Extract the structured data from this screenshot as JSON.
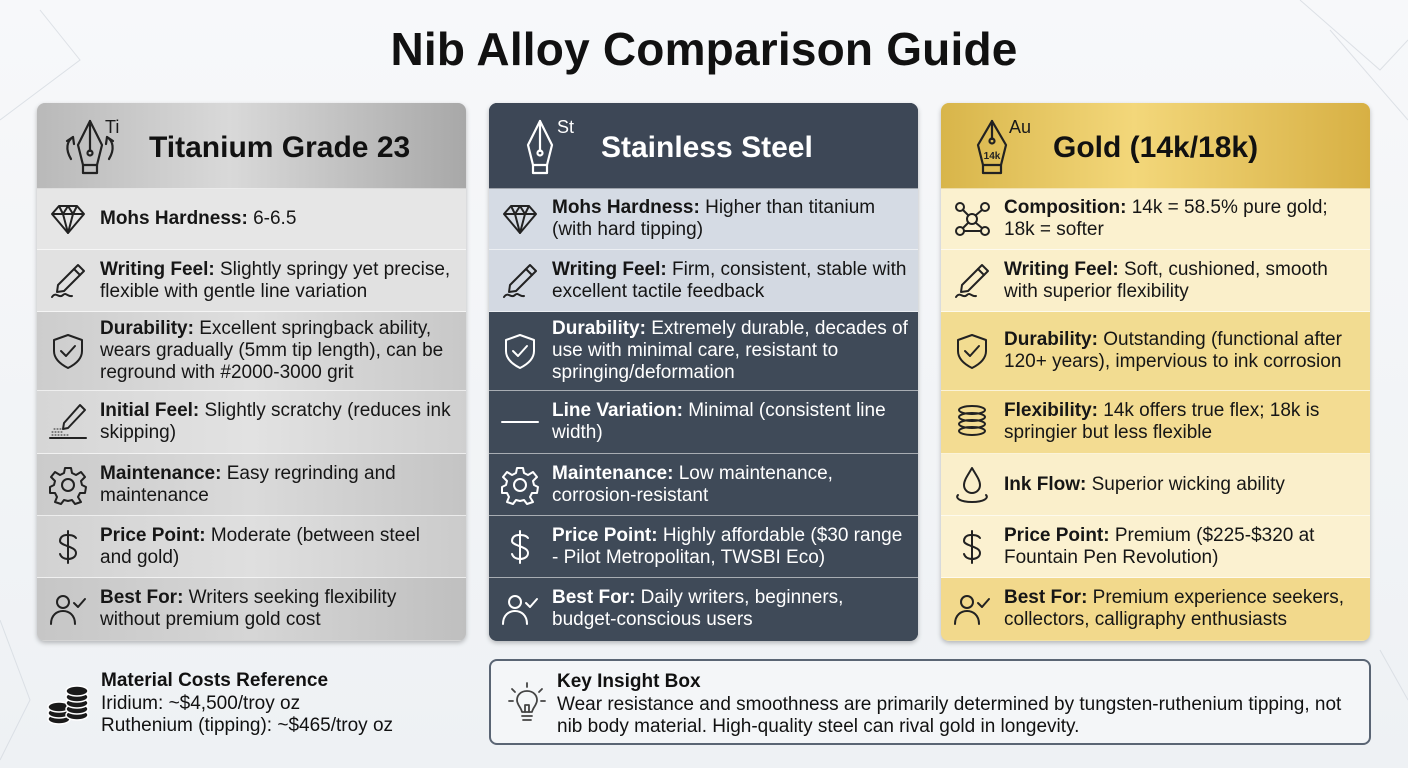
{
  "title": "Nib Alloy Comparison Guide",
  "cards": [
    {
      "symbol": "Ti",
      "title": "Titanium Grade 23",
      "rows": [
        {
          "icon": "diamond-icon",
          "label": "Mohs Hardness:",
          "text": " 6-6.5"
        },
        {
          "icon": "writing-pen-icon",
          "label": "Writing Feel:",
          "text": " Slightly springy yet precise, flexible with gentle line variation"
        },
        {
          "icon": "shield-check-icon",
          "label": "Durability:",
          "text": " Excellent springback ability, wears gradually (5mm tip length), can be reground with #2000-3000 grit"
        },
        {
          "icon": "pen-scratch-icon",
          "label": "Initial Feel:",
          "text": " Slightly scratchy (reduces ink skipping)"
        },
        {
          "icon": "gear-icon",
          "label": "Maintenance:",
          "text": " Easy regrinding and maintenance"
        },
        {
          "icon": "dollar-icon",
          "label": "Price Point:",
          "text": " Moderate (between steel and gold)"
        },
        {
          "icon": "user-check-icon",
          "label": "Best For:",
          "text": " Writers seeking flexibility without premium gold cost"
        }
      ]
    },
    {
      "symbol": "St",
      "title": "Stainless Steel",
      "rows": [
        {
          "icon": "diamond-icon",
          "label": "Mohs Hardness:",
          "text": " Higher than titanium (with hard tipping)"
        },
        {
          "icon": "writing-pen-icon",
          "label": "Writing Feel:",
          "text": " Firm, consistent, stable with excellent tactile feedback"
        },
        {
          "icon": "shield-check-icon",
          "label": "Durability:",
          "text": " Extremely durable, decades of use with minimal care, resistant to springing/deformation"
        },
        {
          "icon": "line-icon",
          "label": "Line Variation:",
          "text": " Minimal (consistent line width)"
        },
        {
          "icon": "gear-icon",
          "label": "Maintenance:",
          "text": " Low maintenance, corrosion-resistant"
        },
        {
          "icon": "dollar-icon",
          "label": "Price Point:",
          "text": " Highly affordable ($30 range - Pilot Metropolitan, TWSBI Eco)"
        },
        {
          "icon": "user-check-icon",
          "label": "Best For:",
          "text": " Daily writers, beginners, budget-conscious users"
        }
      ]
    },
    {
      "symbol": "Au",
      "nib_mark": "14k",
      "title": "Gold (14k/18k)",
      "rows": [
        {
          "icon": "molecule-icon",
          "label": "Composition:",
          "text": " 14k = 58.5% pure gold; 18k = softer"
        },
        {
          "icon": "writing-pen-icon",
          "label": "Writing Feel:",
          "text": " Soft, cushioned, smooth with superior flexibility"
        },
        {
          "icon": "shield-check-icon",
          "label": "Durability:",
          "text": " Outstanding (functional after 120+ years), impervious to ink corrosion"
        },
        {
          "icon": "coil-spring-icon",
          "label": "Flexibility:",
          "text": " 14k offers true flex; 18k is springier but less flexible"
        },
        {
          "icon": "ink-drop-icon",
          "label": "Ink Flow:",
          "text": " Superior wicking ability"
        },
        {
          "icon": "dollar-icon",
          "label": "Price Point:",
          "text": " Premium ($225-$320 at Fountain Pen Revolution)"
        },
        {
          "icon": "user-check-icon",
          "label": "Best For:",
          "text": " Premium experience seekers, collectors, calligraphy enthusiasts"
        }
      ]
    }
  ],
  "costs": {
    "icon": "coin-stack-icon",
    "title": "Material Costs Reference",
    "lines": [
      "Iridium: ~$4,500/troy oz",
      "Ruthenium (tipping): ~$465/troy oz"
    ]
  },
  "insight": {
    "icon": "lightbulb-icon",
    "title": "Key Insight Box",
    "text": "Wear resistance and smoothness are primarily determined by tungsten-ruthenium tipping, not nib body material. High-quality steel can rival gold in longevity."
  }
}
